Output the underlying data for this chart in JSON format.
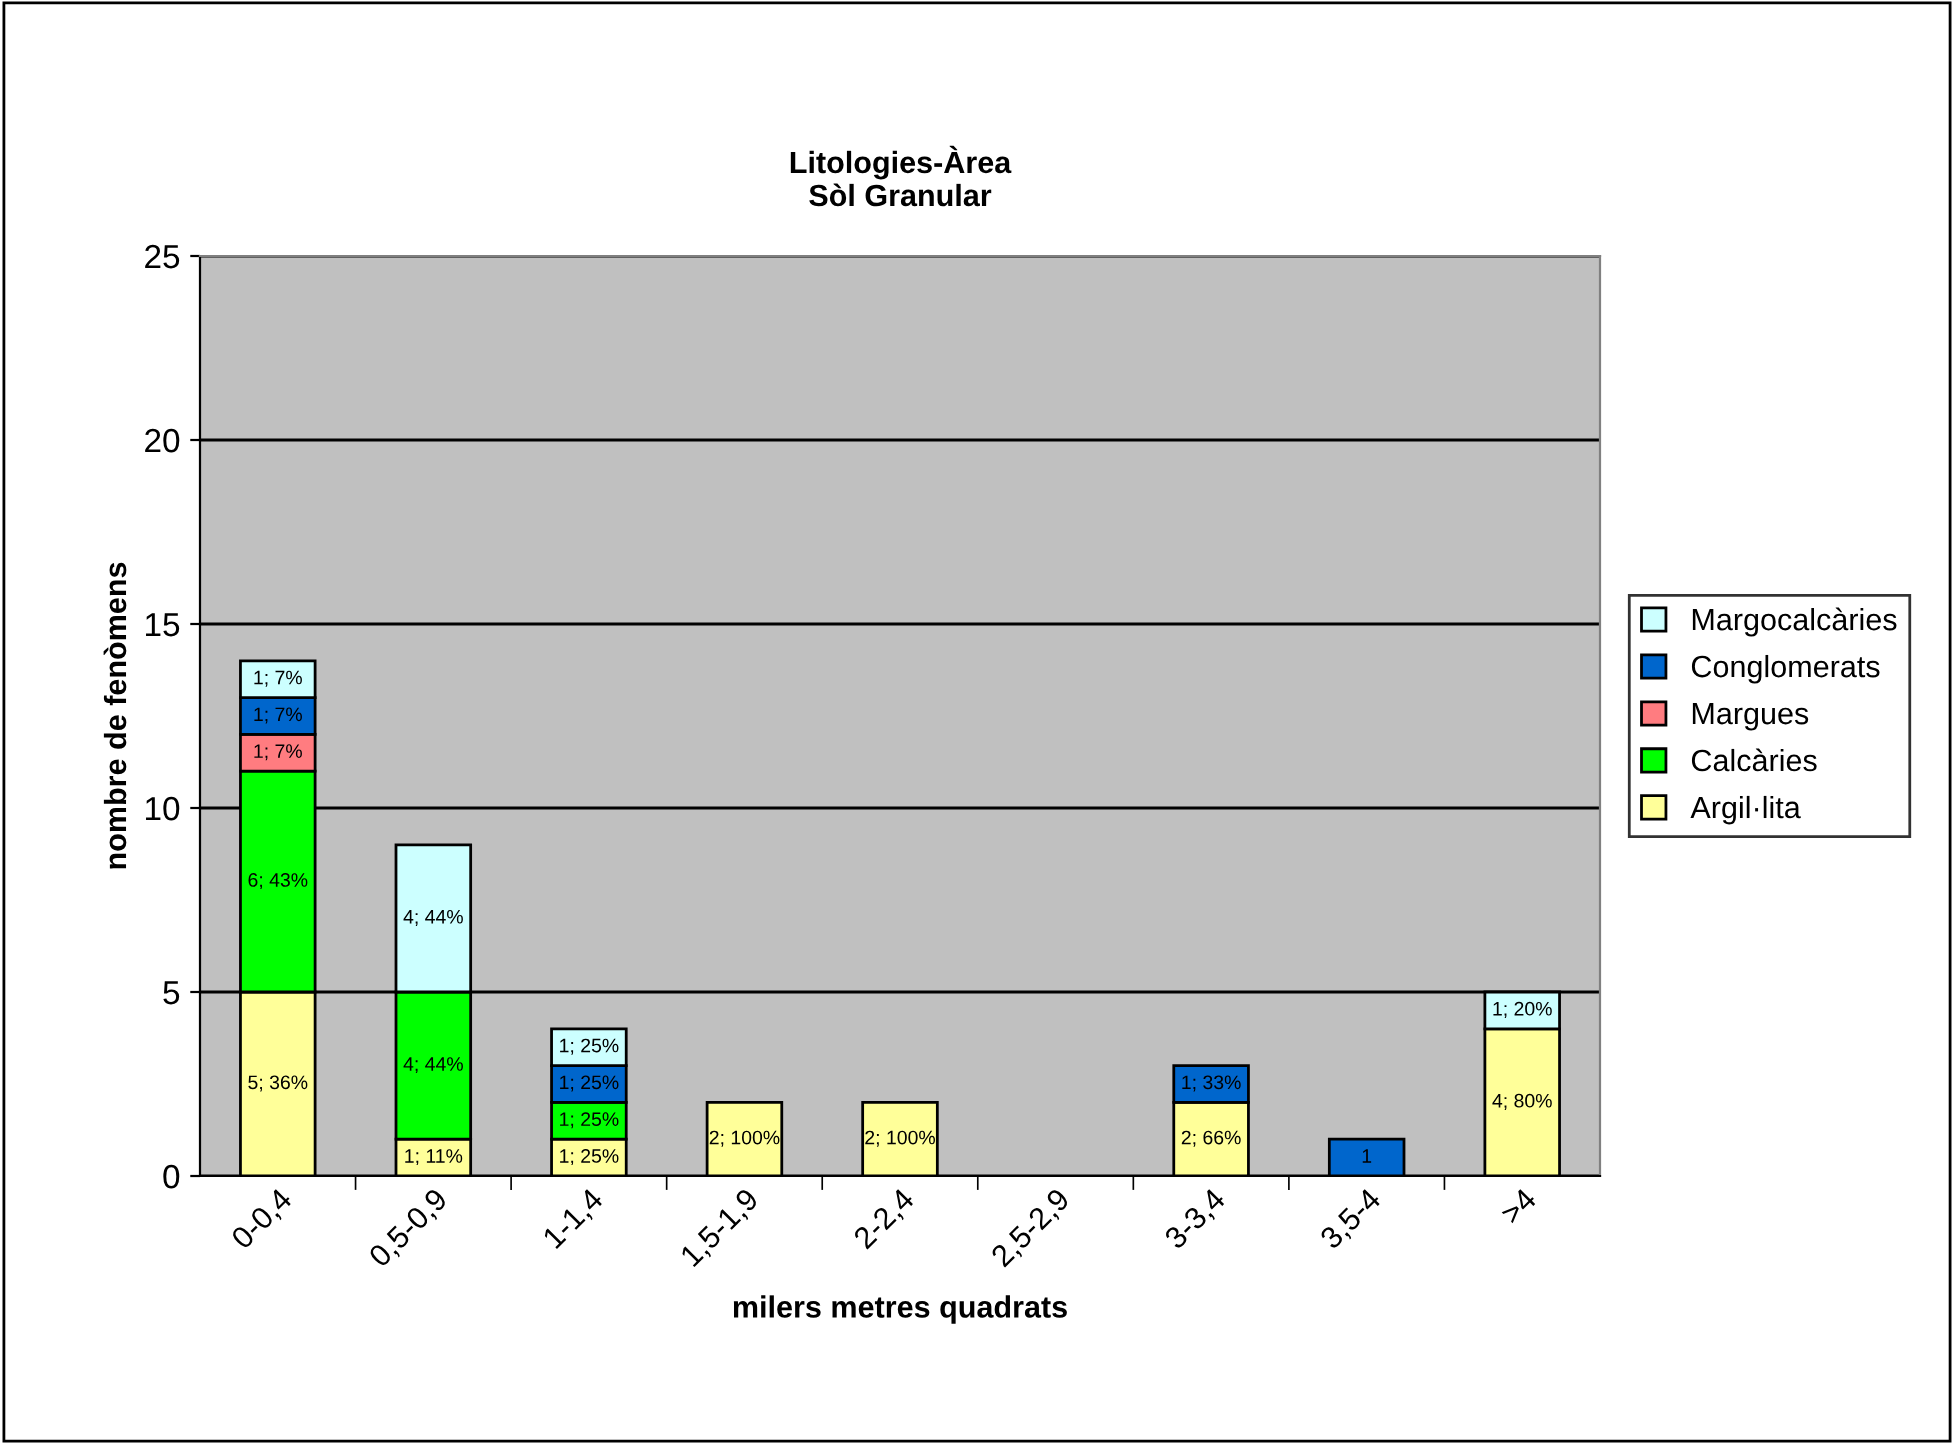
{
  "chart_data": {
    "type": "bar",
    "title": "Litologies-Àrea\nSòl Granular",
    "xlabel": "milers metres quadrats",
    "ylabel": "nombre de fenòmens",
    "categories": [
      "0-0,4",
      "0,5-0,9",
      "1-1,4",
      "1,5-1,9",
      "2-2,4",
      "2,5-2,9",
      "3-3,4",
      "3,5-4",
      ">4"
    ],
    "stacked": true,
    "ylim": [
      0,
      25
    ],
    "yticks": [
      0,
      5,
      10,
      15,
      20,
      25
    ],
    "grid": "y",
    "legend": "right",
    "series": [
      {
        "name": "Argil·lita",
        "color": "#ffff99",
        "values": [
          5,
          1,
          1,
          2,
          2,
          null,
          2,
          null,
          4
        ],
        "value_labels": [
          "5; 36%",
          "1; 11%",
          "1; 25%",
          "2; 100%",
          "2; 100%",
          null,
          "2; 66%",
          null,
          "4; 80%"
        ]
      },
      {
        "name": "Calcàries",
        "color": "#00ff00",
        "values": [
          6,
          4,
          1,
          null,
          null,
          null,
          null,
          null,
          null
        ],
        "value_labels": [
          "6; 43%",
          "4; 44%",
          "1; 25%",
          null,
          null,
          null,
          null,
          null,
          null
        ]
      },
      {
        "name": "Margues",
        "color": "#ff7c80",
        "values": [
          1,
          null,
          null,
          null,
          null,
          null,
          null,
          null,
          null
        ],
        "value_labels": [
          "1; 7%",
          null,
          null,
          null,
          null,
          null,
          null,
          null,
          null
        ]
      },
      {
        "name": "Conglomerats",
        "color": "#0066cc",
        "values": [
          1,
          null,
          1,
          null,
          null,
          null,
          1,
          1,
          null
        ],
        "value_labels": [
          "1; 7%",
          null,
          "1; 25%",
          null,
          null,
          null,
          "1; 33%",
          "1",
          null
        ]
      },
      {
        "name": "Margocalcàries",
        "color": "#ccffff",
        "values": [
          1,
          4,
          1,
          null,
          null,
          null,
          null,
          null,
          1
        ],
        "value_labels": [
          "1; 7%",
          "4; 44%",
          "1; 25%",
          null,
          null,
          null,
          null,
          null,
          "1; 20%"
        ]
      }
    ]
  }
}
